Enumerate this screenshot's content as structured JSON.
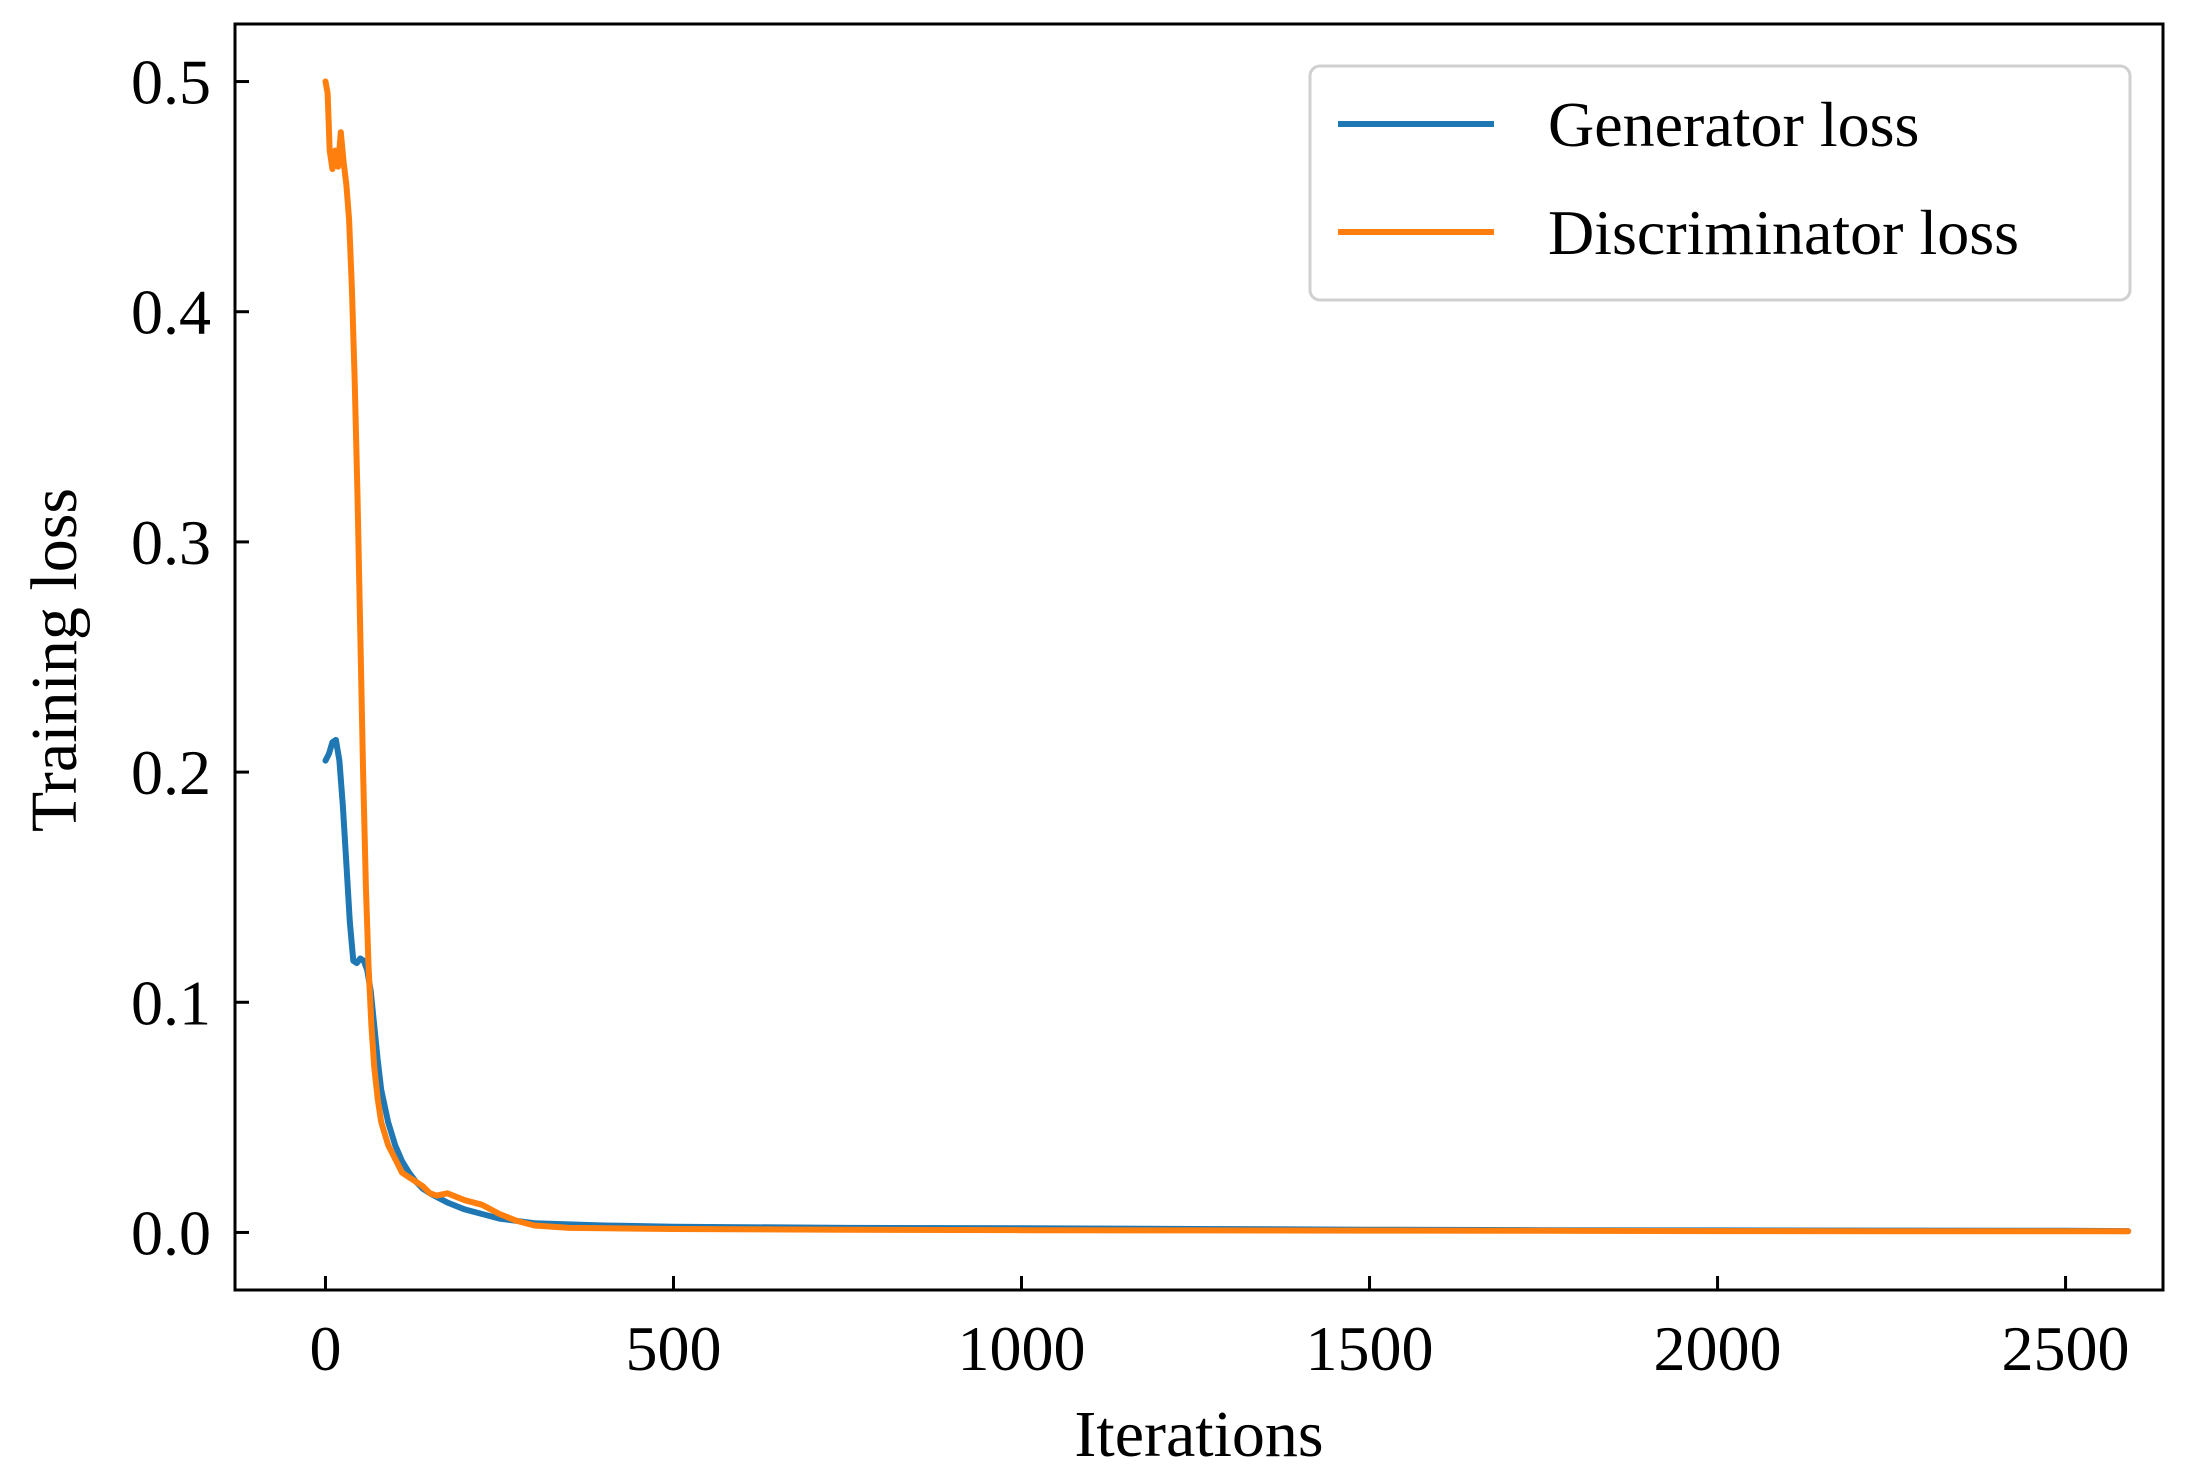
{
  "chart_data": {
    "type": "line",
    "title": "",
    "xlabel": "Iterations",
    "ylabel": "Training loss",
    "xlim": [
      -130,
      2640
    ],
    "ylim": [
      -0.025,
      0.525
    ],
    "xticks": [
      0,
      500,
      1000,
      1500,
      2000,
      2500
    ],
    "xtick_labels": [
      "0",
      "500",
      "1000",
      "1500",
      "2000",
      "2500"
    ],
    "yticks": [
      0.0,
      0.1,
      0.2,
      0.3,
      0.4,
      0.5
    ],
    "ytick_labels": [
      "0.0",
      "0.1",
      "0.2",
      "0.3",
      "0.4",
      "0.5"
    ],
    "grid": false,
    "legend_position": "top-right",
    "series": [
      {
        "name": "Generator loss",
        "color": "#1f77b4",
        "x": [
          0,
          5,
          10,
          15,
          20,
          25,
          30,
          35,
          40,
          45,
          50,
          55,
          60,
          65,
          70,
          75,
          80,
          90,
          100,
          110,
          120,
          130,
          140,
          150,
          175,
          200,
          250,
          300,
          400,
          500,
          750,
          1000,
          1250,
          1500,
          1750,
          2000,
          2250,
          2500,
          2590
        ],
        "y": [
          0.205,
          0.208,
          0.213,
          0.214,
          0.205,
          0.185,
          0.16,
          0.135,
          0.118,
          0.117,
          0.119,
          0.118,
          0.114,
          0.105,
          0.09,
          0.075,
          0.062,
          0.048,
          0.038,
          0.031,
          0.026,
          0.022,
          0.019,
          0.017,
          0.013,
          0.01,
          0.006,
          0.004,
          0.003,
          0.0025,
          0.002,
          0.0018,
          0.0015,
          0.0012,
          0.001,
          0.0009,
          0.0008,
          0.0007,
          0.0006
        ]
      },
      {
        "name": "Discriminator loss",
        "color": "#ff7f0e",
        "x": [
          0,
          3,
          6,
          10,
          14,
          18,
          22,
          26,
          30,
          34,
          38,
          42,
          46,
          50,
          54,
          58,
          62,
          66,
          70,
          75,
          80,
          90,
          100,
          110,
          120,
          130,
          140,
          150,
          160,
          175,
          200,
          225,
          250,
          275,
          300,
          350,
          400,
          500,
          750,
          1000,
          1250,
          1500,
          1750,
          2000,
          2250,
          2500,
          2590
        ],
        "y": [
          0.5,
          0.495,
          0.47,
          0.462,
          0.47,
          0.463,
          0.478,
          0.465,
          0.455,
          0.44,
          0.41,
          0.37,
          0.32,
          0.26,
          0.2,
          0.15,
          0.115,
          0.09,
          0.072,
          0.058,
          0.048,
          0.038,
          0.032,
          0.026,
          0.024,
          0.022,
          0.02,
          0.017,
          0.016,
          0.017,
          0.014,
          0.012,
          0.008,
          0.005,
          0.003,
          0.002,
          0.0018,
          0.0015,
          0.0012,
          0.001,
          0.0009,
          0.0008,
          0.0007,
          0.0006,
          0.0005,
          0.0005,
          0.0005
        ]
      }
    ]
  }
}
